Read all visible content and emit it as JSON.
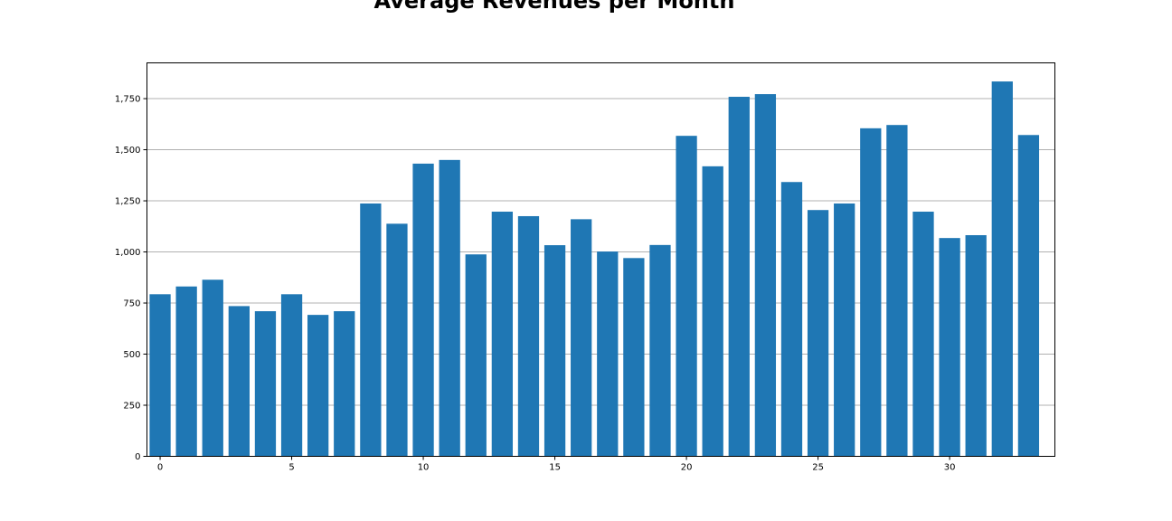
{
  "chart_data": {
    "type": "bar",
    "title": "Average Revenues per Month",
    "xlabel": "",
    "ylabel": "",
    "x": [
      0,
      1,
      2,
      3,
      4,
      5,
      6,
      7,
      8,
      9,
      10,
      11,
      12,
      13,
      14,
      15,
      16,
      17,
      18,
      19,
      20,
      21,
      22,
      23,
      24,
      25,
      26,
      27,
      28,
      29,
      30,
      31,
      32,
      33
    ],
    "values": [
      793,
      831,
      864,
      735,
      710,
      793,
      692,
      710,
      1237,
      1138,
      1432,
      1450,
      988,
      1197,
      1175,
      1033,
      1160,
      1002,
      970,
      1034,
      1568,
      1419,
      1759,
      1772,
      1342,
      1205,
      1237,
      1605,
      1621,
      1197,
      1068,
      1082,
      1834,
      1572
    ],
    "xlim": [
      -0.5,
      34
    ],
    "ylim": [
      0,
      1925
    ],
    "xticks": [
      0,
      5,
      10,
      15,
      20,
      25,
      30
    ],
    "xtick_labels": [
      "0",
      "5",
      "10",
      "15",
      "20",
      "25",
      "30"
    ],
    "yticks": [
      0,
      250,
      500,
      750,
      1000,
      1250,
      1500,
      1750
    ],
    "ytick_labels": [
      "0",
      "250",
      "500",
      "750",
      "1,000",
      "1,250",
      "1,500",
      "1,750"
    ],
    "grid": "horizontal",
    "bar_color": "#1f77b4",
    "grid_color": "#b0b0b0"
  }
}
